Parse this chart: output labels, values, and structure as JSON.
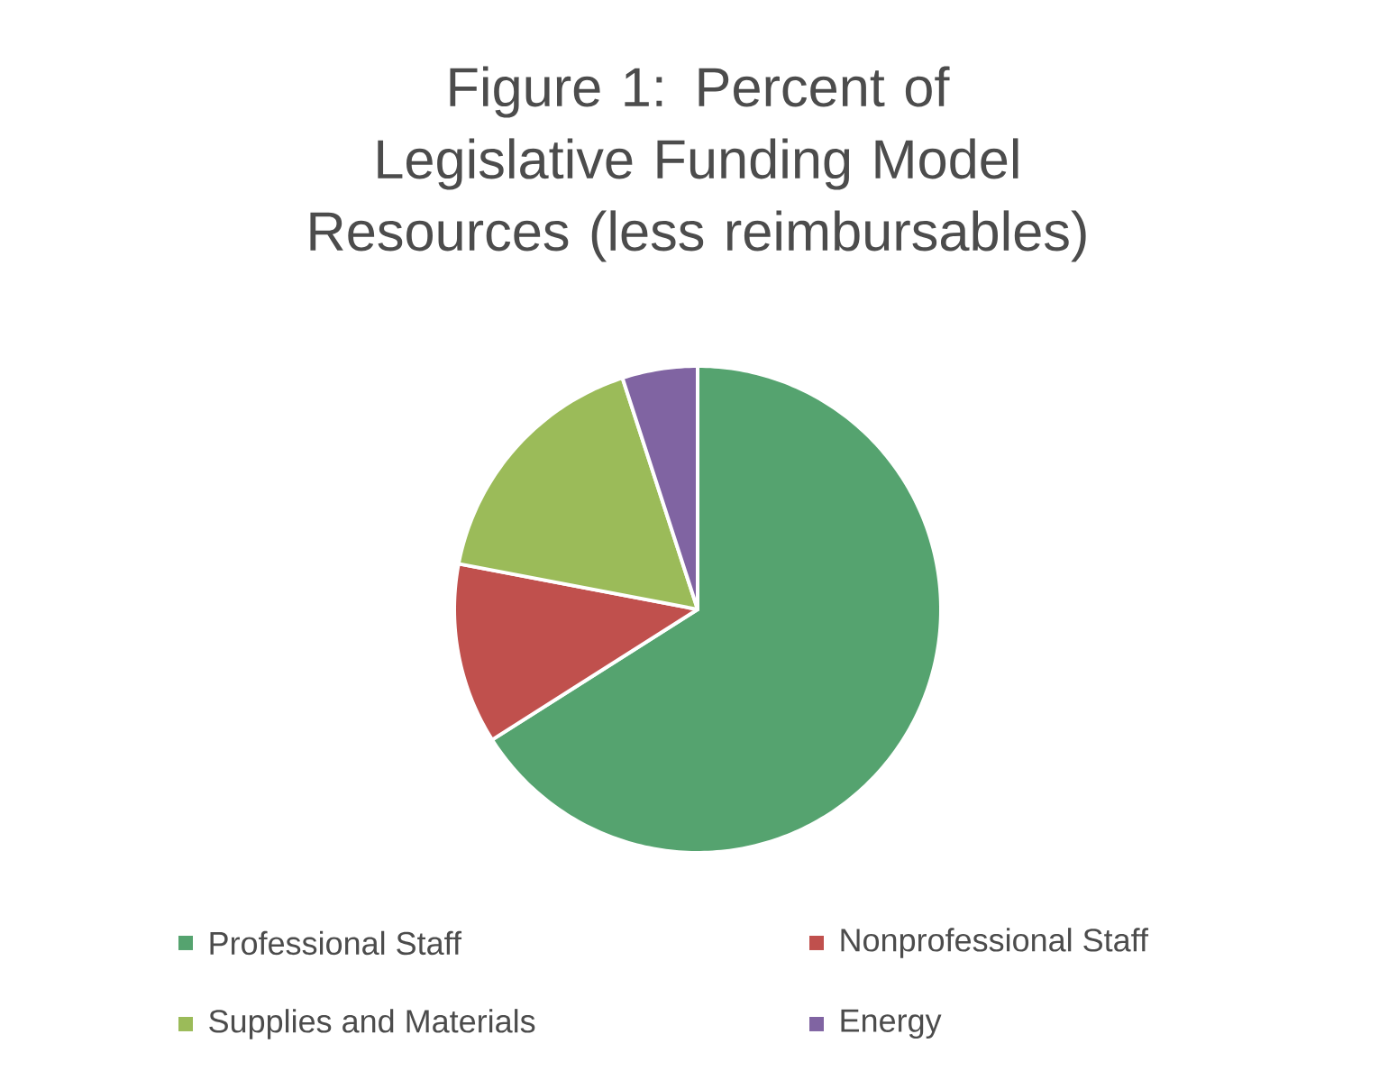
{
  "chart_data": {
    "type": "pie",
    "title": "Figure 1: Percent of Legislative Funding Model Resources (less reimbursables)",
    "categories": [
      "Professional Staff",
      "Nonprofessional Staff",
      "Supplies and Materials",
      "Energy"
    ],
    "values": [
      66,
      12,
      17,
      5
    ],
    "colors": [
      "#55a36f",
      "#c0504d",
      "#9bbb59",
      "#8064a2"
    ],
    "legend": "bottom"
  }
}
